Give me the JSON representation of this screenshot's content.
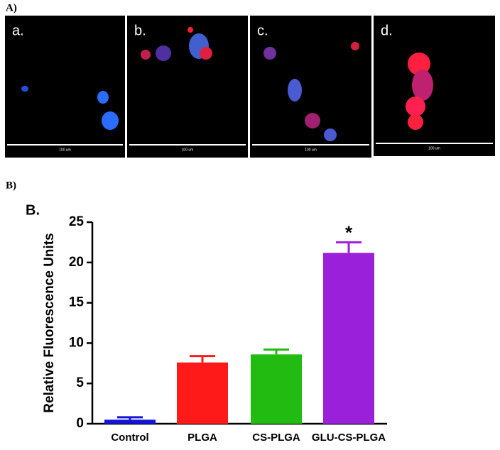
{
  "panel_labels": [
    "A)",
    "B)"
  ],
  "images": [
    {
      "label": "a.",
      "scale": "100 um"
    },
    {
      "label": "b.",
      "scale": "100 um"
    },
    {
      "label": "c.",
      "scale": "100 um"
    },
    {
      "label": "d.",
      "scale": "100 um"
    }
  ],
  "chart_data": {
    "type": "bar",
    "title": "B.",
    "y_label": "Relative Fluorescence Units",
    "categories": [
      "Control",
      "PLGA",
      "CS-PLGA",
      "GLU-CS-PLGA"
    ],
    "values": [
      0.5,
      7.6,
      8.6,
      21.2
    ],
    "errors": [
      0.3,
      0.8,
      0.6,
      1.3
    ],
    "colors": [
      "#1414d8",
      "#ff1a1a",
      "#22bb11",
      "#9b20d9"
    ],
    "annotation": "*",
    "ylim": [
      0,
      25
    ],
    "yticks": [
      0,
      5,
      10,
      15,
      20,
      25
    ]
  }
}
